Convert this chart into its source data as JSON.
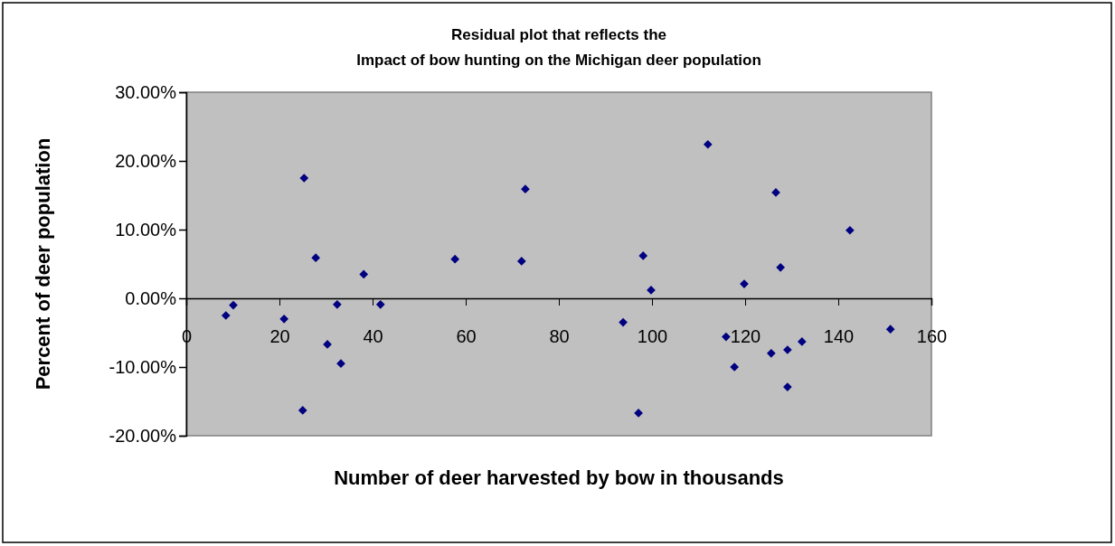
{
  "chart_data": {
    "type": "scatter",
    "title": "Residual plot that reflects the\nImpact of bow hunting on the Michigan deer population",
    "xlabel": "Number of deer harvested by bow in thousands",
    "ylabel": "Percent of deer population",
    "x": [
      8.5,
      10.1,
      21.0,
      25.3,
      25.0,
      27.8,
      30.3,
      32.4,
      33.2,
      38.1,
      41.7,
      57.7,
      72.0,
      72.8,
      93.8,
      97.1,
      98.1,
      99.8,
      112.0,
      115.9,
      117.7,
      119.8,
      125.6,
      126.6,
      127.6,
      129.1,
      129.1,
      132.2,
      142.5,
      151.2
    ],
    "series": [
      {
        "color": "#000080",
        "values": [
          -2.5,
          -1.0,
          -3.0,
          17.5,
          -16.3,
          5.9,
          -6.7,
          -0.9,
          -9.5,
          3.5,
          -0.9,
          5.7,
          5.4,
          15.9,
          -3.5,
          -16.7,
          6.2,
          1.2,
          22.4,
          -5.6,
          -10.0,
          2.1,
          -8.0,
          15.4,
          4.5,
          -7.5,
          -12.9,
          -6.3,
          9.9,
          -4.5
        ]
      }
    ],
    "xlim": [
      0,
      160
    ],
    "xticks": [
      0,
      20,
      40,
      60,
      80,
      100,
      120,
      140,
      160
    ],
    "ylim": [
      -20,
      30
    ],
    "yticks": [
      {
        "value": -20,
        "label": "-20.00%"
      },
      {
        "value": -10,
        "label": "-10.00%"
      },
      {
        "value": 0,
        "label": "0.00%"
      },
      {
        "value": 10,
        "label": "10.00%"
      },
      {
        "value": 20,
        "label": "20.00%"
      },
      {
        "value": 30,
        "label": "30.00%"
      }
    ],
    "grid": false,
    "marker": "diamond"
  }
}
